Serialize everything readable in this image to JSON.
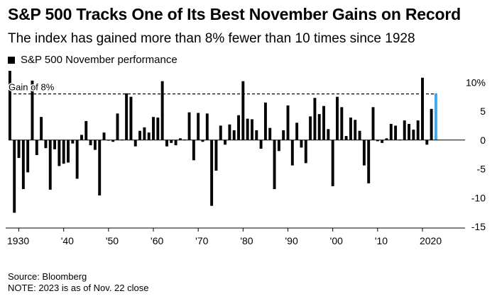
{
  "title": "S&P 500 Tracks One of Its Best November Gains on Record",
  "subtitle": "The index has gained more than 8% fewer than 10 times since 1928",
  "legend": {
    "label": "S&P 500 November performance"
  },
  "annotation": "Gain of 8%",
  "source": "Source: Bloomberg",
  "note": "NOTE: 2023 is as of Nov. 22 close",
  "colors": {
    "bar": "#000000",
    "highlight": "#3da9f5"
  },
  "chart_data": {
    "type": "bar",
    "title": "S&P 500 Tracks One of Its Best November Gains on Record",
    "subtitle": "The index has gained more than 8% fewer than 10 times since 1928",
    "legend_position": "top-left",
    "grid": false,
    "x": [
      1928,
      1929,
      1930,
      1931,
      1932,
      1933,
      1934,
      1935,
      1936,
      1937,
      1938,
      1939,
      1940,
      1941,
      1942,
      1943,
      1944,
      1945,
      1946,
      1947,
      1948,
      1949,
      1950,
      1951,
      1952,
      1953,
      1954,
      1955,
      1956,
      1957,
      1958,
      1959,
      1960,
      1961,
      1962,
      1963,
      1964,
      1965,
      1966,
      1967,
      1968,
      1969,
      1970,
      1971,
      1972,
      1973,
      1974,
      1975,
      1976,
      1977,
      1978,
      1979,
      1980,
      1981,
      1982,
      1983,
      1984,
      1985,
      1986,
      1987,
      1988,
      1989,
      1990,
      1991,
      1992,
      1993,
      1994,
      1995,
      1996,
      1997,
      1998,
      1999,
      2000,
      2001,
      2002,
      2003,
      2004,
      2005,
      2006,
      2007,
      2008,
      2009,
      2010,
      2011,
      2012,
      2013,
      2014,
      2015,
      2016,
      2017,
      2018,
      2019,
      2020,
      2021,
      2022,
      2023
    ],
    "series": [
      {
        "name": "S&P 500 November performance",
        "values": [
          12.0,
          -12.6,
          -3.1,
          -8.5,
          -5.6,
          10.3,
          -2.6,
          4.0,
          -1.4,
          -8.6,
          -1.6,
          -4.5,
          -4.1,
          -3.9,
          -0.6,
          -6.7,
          0.9,
          3.3,
          -0.9,
          -1.7,
          -9.6,
          1.3,
          -0.1,
          -0.3,
          4.6,
          0.1,
          8.1,
          7.5,
          -1.1,
          1.6,
          2.2,
          1.3,
          4.0,
          3.9,
          10.2,
          -1.1,
          -0.5,
          -0.9,
          0.3,
          0.1,
          4.8,
          -3.5,
          4.7,
          -0.3,
          4.6,
          -11.4,
          -5.3,
          2.5,
          -0.8,
          2.7,
          1.7,
          4.3,
          10.2,
          3.7,
          3.6,
          1.7,
          -1.5,
          6.5,
          2.1,
          -8.5,
          -1.9,
          1.7,
          6.0,
          -4.4,
          3.0,
          -1.3,
          -4.0,
          4.1,
          7.3,
          4.5,
          5.9,
          1.9,
          -8.0,
          7.5,
          5.7,
          0.7,
          3.9,
          3.5,
          1.6,
          -4.4,
          -7.5,
          5.7,
          -0.2,
          -0.5,
          0.3,
          2.8,
          2.5,
          0.1,
          3.4,
          2.8,
          1.8,
          3.4,
          10.8,
          -0.8,
          5.4,
          8.1
        ]
      }
    ],
    "highlight": {
      "x": 2023,
      "value": 8.1,
      "color": "#3da9f5"
    },
    "reference_line": {
      "value": 8,
      "label": "Gain of 8%",
      "style": "dashed"
    },
    "xlim": [
      1927.7,
      2029.5
    ],
    "ylim": [
      -15,
      12
    ],
    "xticks": [
      1930,
      1940,
      1950,
      1960,
      1970,
      1980,
      1990,
      2000,
      2010,
      2020
    ],
    "xtick_labels": [
      "1930",
      "'40",
      "'50",
      "'60",
      "'70",
      "'80",
      "'90",
      "'00",
      "'10",
      "2020"
    ],
    "yticks": [
      10,
      5,
      0,
      -5,
      -10,
      -15
    ],
    "ytick_labels": [
      "10%",
      "5",
      "0",
      "-5",
      "-10",
      "-15"
    ],
    "xlabel": "",
    "ylabel": ""
  }
}
